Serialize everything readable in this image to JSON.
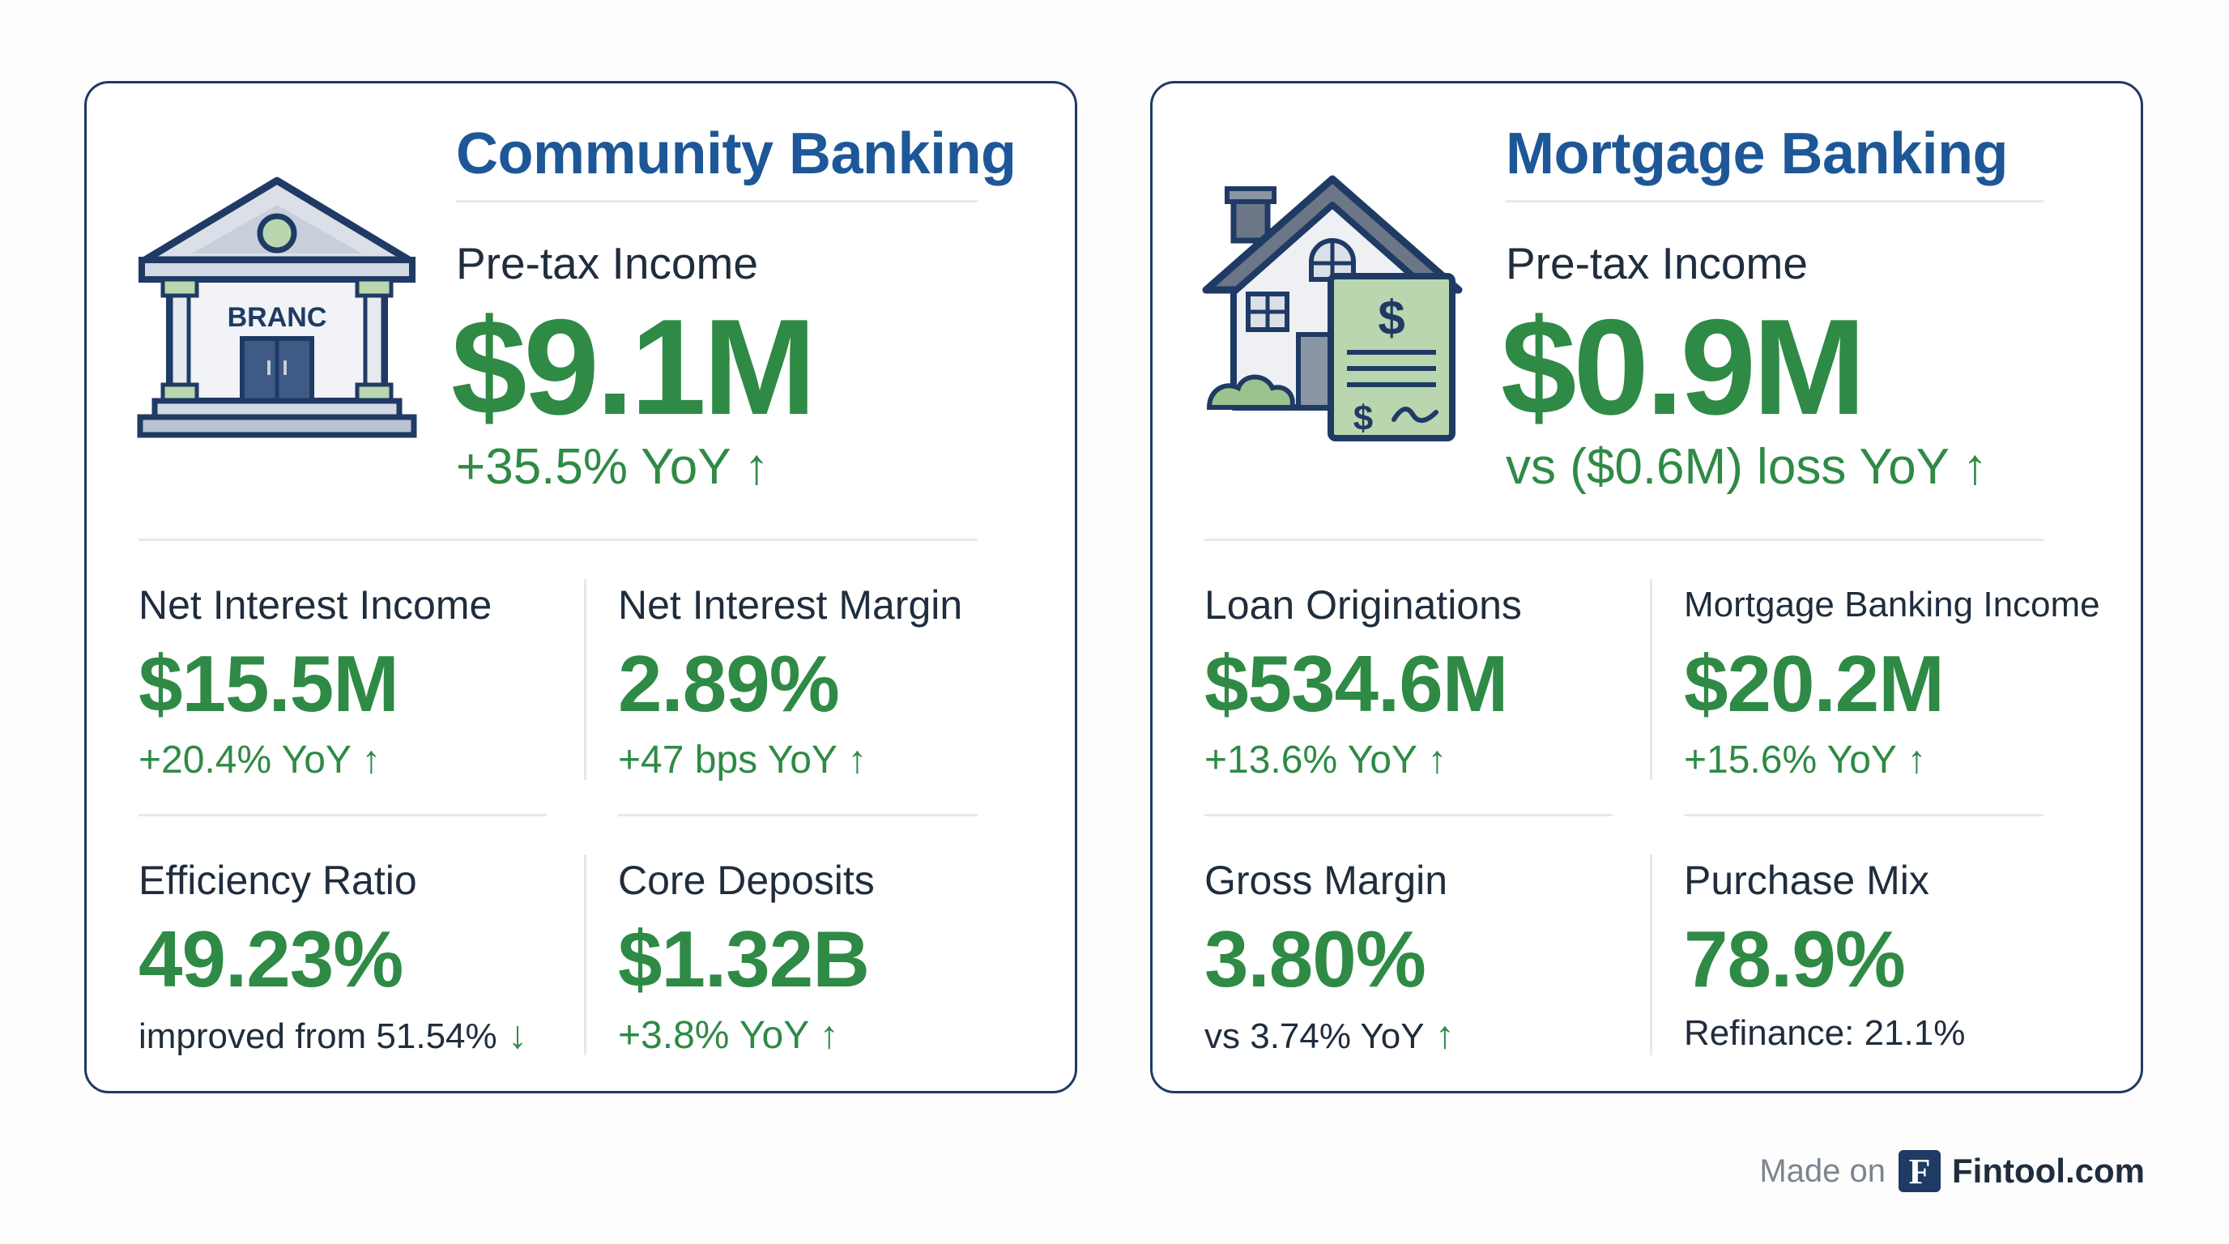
{
  "colors": {
    "title": "#1e5797",
    "positive": "#2e8a45",
    "border": "#1f3a64",
    "text": "#1f2d3d"
  },
  "community": {
    "title": "Community Banking",
    "icon": "bank-building-icon",
    "building_sign": "BRANC",
    "hero": {
      "label": "Pre-tax Income",
      "value": "$9.1M",
      "change": "+35.5% YoY",
      "arrow": "↑"
    },
    "metrics": [
      {
        "label": "Net Interest Income",
        "value": "$15.5M",
        "sub": "+20.4% YoY",
        "arrow": "↑"
      },
      {
        "label": "Net Interest Margin",
        "value": "2.89%",
        "sub": "+47 bps YoY",
        "arrow": "↑"
      },
      {
        "label": "Efficiency Ratio",
        "value": "49.23%",
        "sub": "improved from 51.54%",
        "arrow": "↓"
      },
      {
        "label": "Core Deposits",
        "value": "$1.32B",
        "sub": "+3.8% YoY",
        "arrow": "↑"
      }
    ]
  },
  "mortgage": {
    "title": "Mortgage Banking",
    "icon": "house-document-icon",
    "hero": {
      "label": "Pre-tax Income",
      "value": "$0.9M",
      "change": "vs ($0.6M) loss YoY",
      "arrow": "↑"
    },
    "metrics": [
      {
        "label": "Loan Originations",
        "value": "$534.6M",
        "sub": "+13.6% YoY",
        "arrow": "↑"
      },
      {
        "label": "Mortgage Banking Income",
        "value": "$20.2M",
        "sub": "+15.6% YoY",
        "arrow": "↑"
      },
      {
        "label": "Gross Margin",
        "value": "3.80%",
        "sub": "vs 3.74% YoY",
        "arrow": "↑"
      },
      {
        "label": "Purchase Mix",
        "value": "78.9%",
        "sub": "Refinance: 21.1%"
      }
    ]
  },
  "footer": {
    "made_on": "Made on",
    "logo_letter": "F",
    "brand": "Fintool.com"
  }
}
